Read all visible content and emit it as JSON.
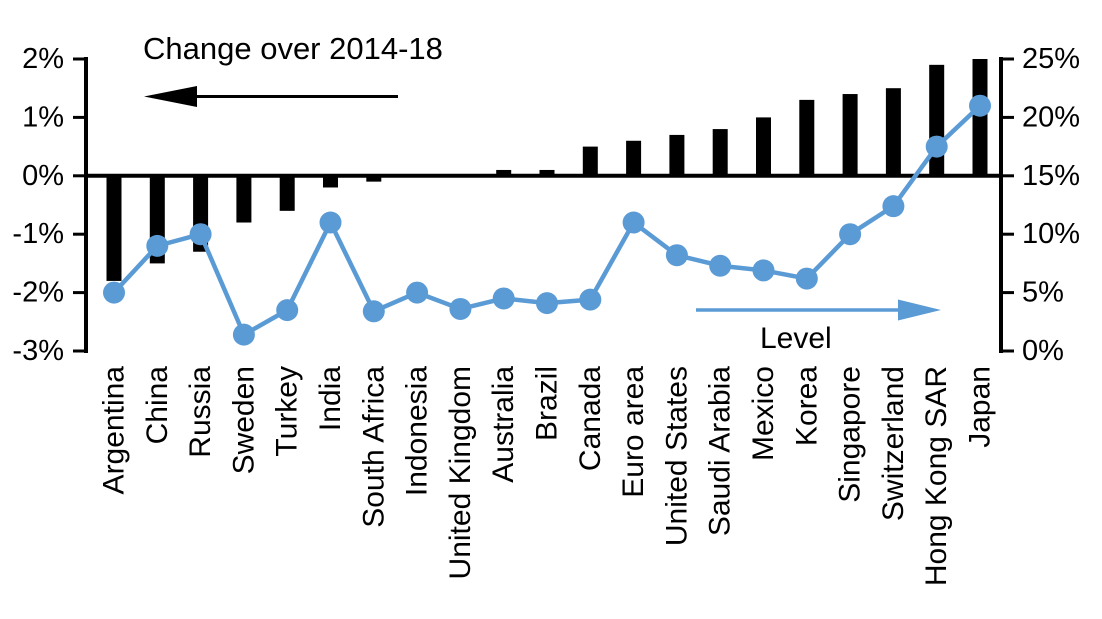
{
  "chart_data": {
    "type": "combo",
    "title": "",
    "grid": "off",
    "legend_position": "none",
    "categories": [
      "Argentina",
      "China",
      "Russia",
      "Sweden",
      "Turkey",
      "India",
      "South Africa",
      "Indonesia",
      "United Kingdom",
      "Australia",
      "Brazil",
      "Canada",
      "Euro area",
      "United States",
      "Saudi Arabia",
      "Mexico",
      "Korea",
      "Singapore",
      "Switzerland",
      "Hong Kong SAR",
      "Japan"
    ],
    "series": [
      {
        "name": "Change over 2014-18",
        "type": "bar",
        "axis": "left",
        "color": "#000000",
        "values": [
          -1.8,
          -1.5,
          -1.3,
          -0.8,
          -0.6,
          -0.2,
          -0.1,
          0,
          0,
          0.1,
          0.1,
          0.5,
          0.6,
          0.7,
          0.8,
          1.0,
          1.3,
          1.4,
          1.5,
          1.9,
          2.0
        ]
      },
      {
        "name": "Level",
        "type": "line",
        "axis": "right",
        "color": "#5B9BD5",
        "values": [
          5.0,
          9.0,
          10.0,
          1.4,
          3.5,
          11.0,
          3.4,
          5.0,
          3.6,
          4.5,
          4.1,
          4.4,
          11.0,
          8.2,
          7.3,
          6.9,
          6.2,
          10.0,
          12.4,
          17.5,
          21.0
        ]
      }
    ],
    "left_axis": {
      "min": -3,
      "max": 2,
      "tick_values": [
        2,
        1,
        0,
        -1,
        -2,
        -3
      ],
      "tick_labels": [
        "2%",
        "1%",
        "0%",
        "-1%",
        "-2%",
        "-3%"
      ]
    },
    "right_axis": {
      "min": 0,
      "max": 25,
      "tick_values": [
        25,
        20,
        15,
        10,
        5,
        0
      ],
      "tick_labels": [
        "25%",
        "20%",
        "15%",
        "10%",
        "5%",
        "0%"
      ]
    },
    "annotations": {
      "bars_label": "Change over 2014-18",
      "bars_arrow_direction": "left",
      "line_label": "Level",
      "line_arrow_direction": "right"
    }
  }
}
